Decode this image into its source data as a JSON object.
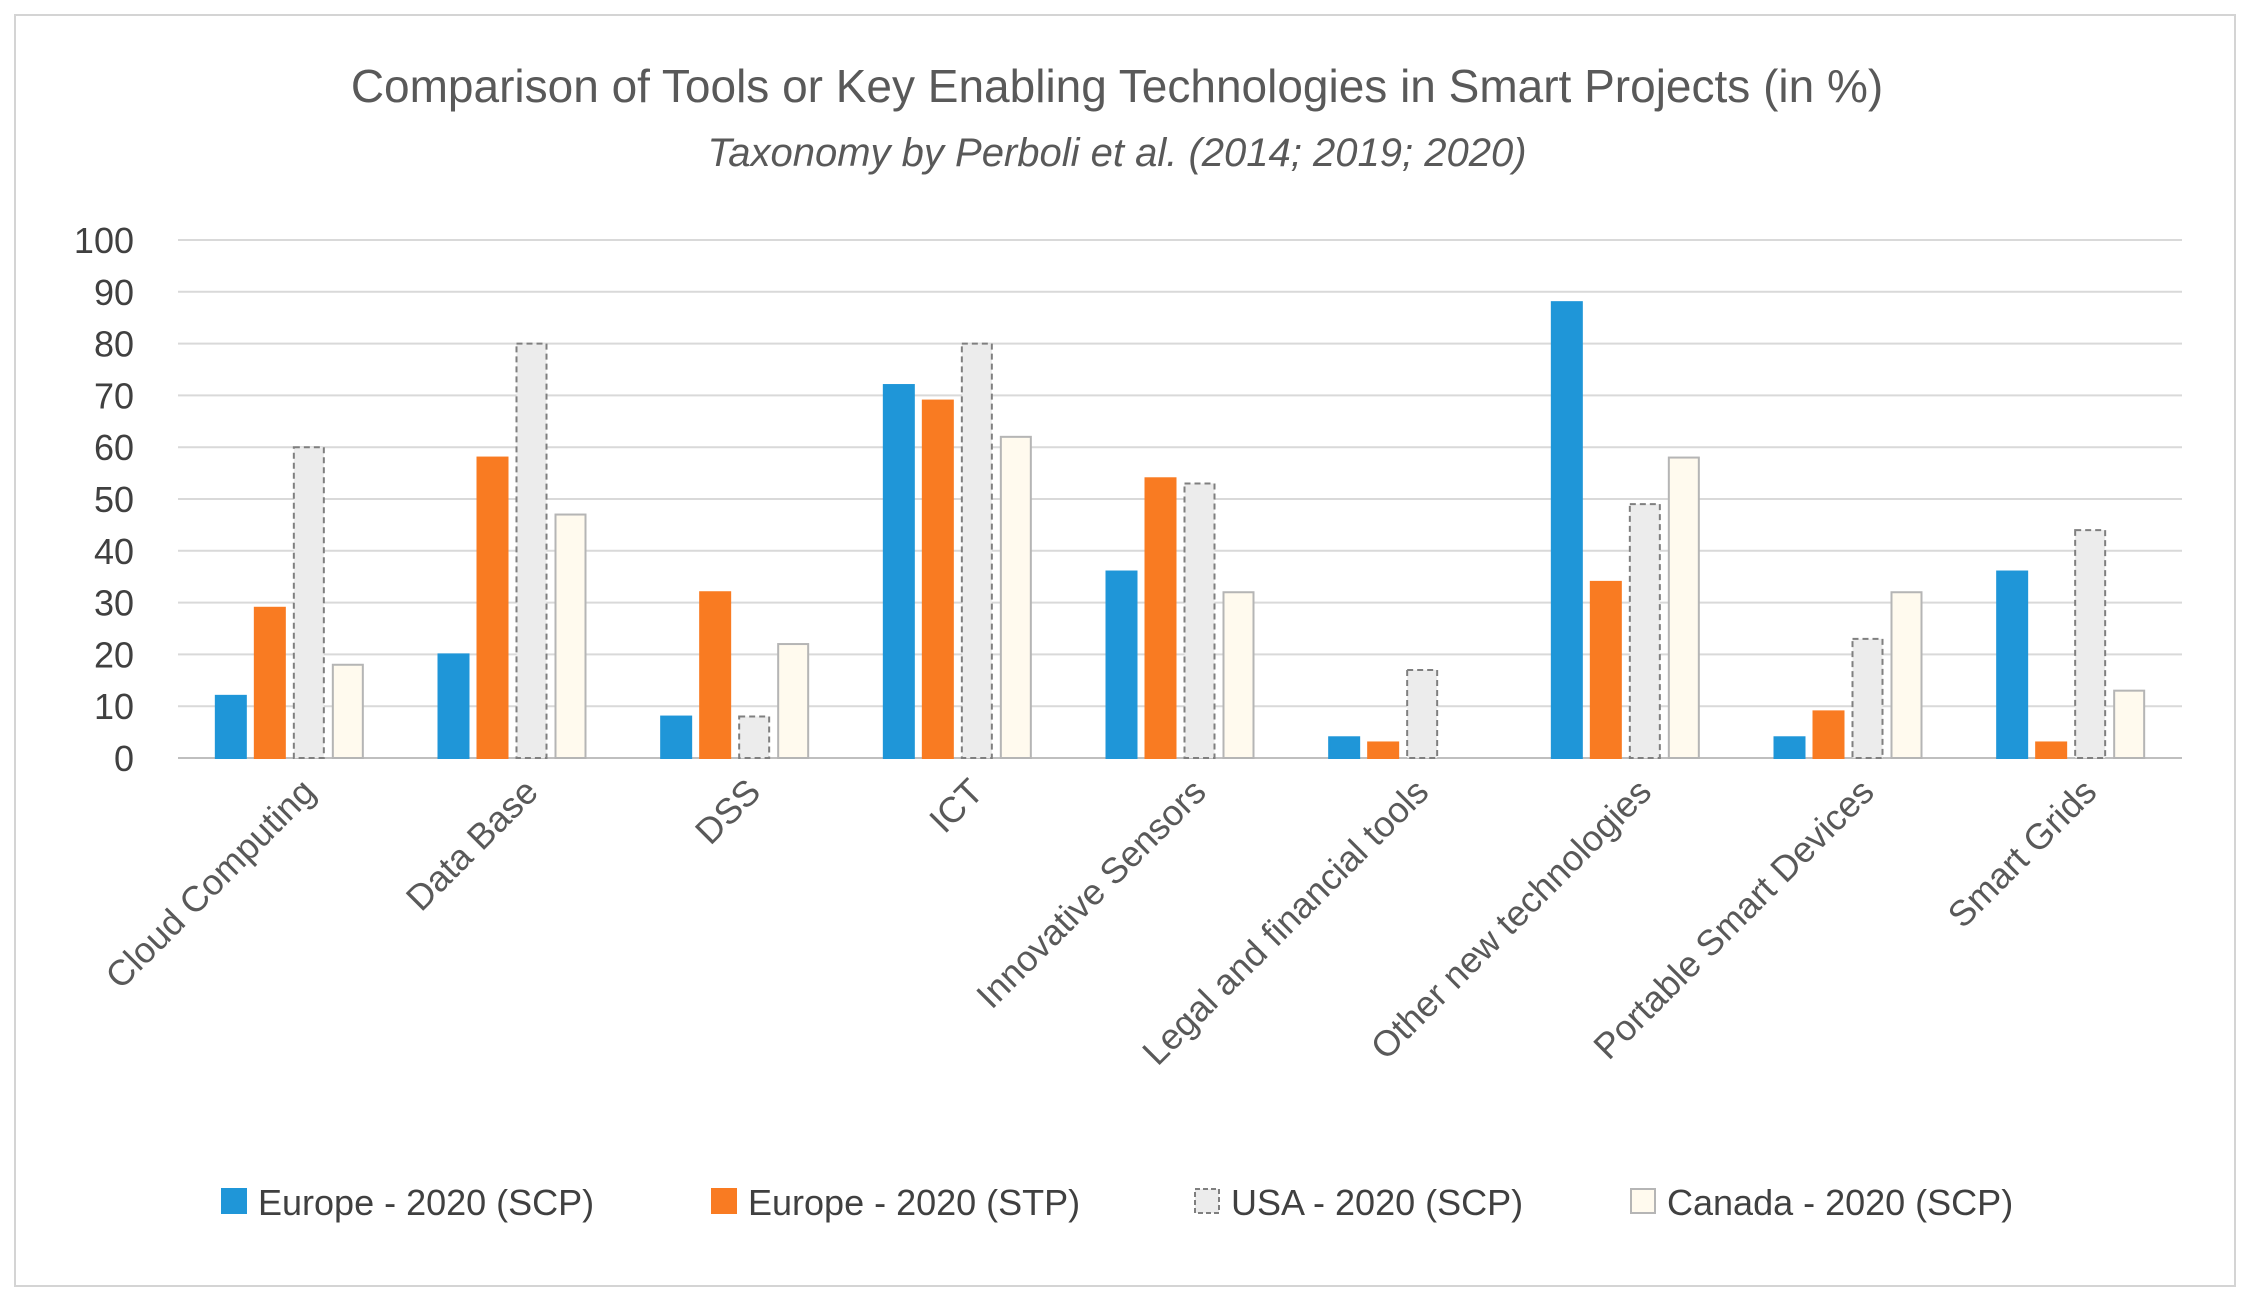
{
  "chart_data": {
    "type": "bar",
    "title": "Comparison  of Tools or Key Enabling Technologies  in Smart Projects (in %)",
    "subtitle": "Taxonomy by Perboli et al. (2014; 2019; 2020)",
    "xlabel": "",
    "ylabel": "",
    "ylim": [
      0,
      100
    ],
    "yticks": [
      0,
      10,
      20,
      30,
      40,
      50,
      60,
      70,
      80,
      90,
      100
    ],
    "grid": true,
    "legend_position": "bottom",
    "categories": [
      "Cloud Computing",
      "Data Base",
      "DSS",
      "ICT",
      "Innovative Sensors",
      "Legal and financial tools",
      "Other new technologies",
      "Portable Smart Devices",
      "Smart Grids"
    ],
    "series": [
      {
        "name": "Europe - 2020 (SCP)",
        "color": "#1f96d8",
        "stroke": "#1f96d8",
        "dashed": false,
        "values": [
          12,
          20,
          8,
          72,
          36,
          4,
          88,
          4,
          36
        ]
      },
      {
        "name": "Europe - 2020 (STP)",
        "color": "#f97b22",
        "stroke": "#f97b22",
        "dashed": false,
        "values": [
          29,
          58,
          32,
          69,
          54,
          3,
          34,
          9,
          3
        ]
      },
      {
        "name": "USA - 2020 (SCP)",
        "color": "#ececec",
        "stroke": "#7f7f7f",
        "dashed": true,
        "values": [
          60,
          80,
          8,
          80,
          53,
          17,
          49,
          23,
          44
        ]
      },
      {
        "name": "Canada - 2020 (SCP)",
        "color": "#fffaee",
        "stroke": "#b5b5b5",
        "dashed": false,
        "values": [
          18,
          47,
          22,
          62,
          32,
          0,
          58,
          32,
          13
        ]
      }
    ]
  }
}
